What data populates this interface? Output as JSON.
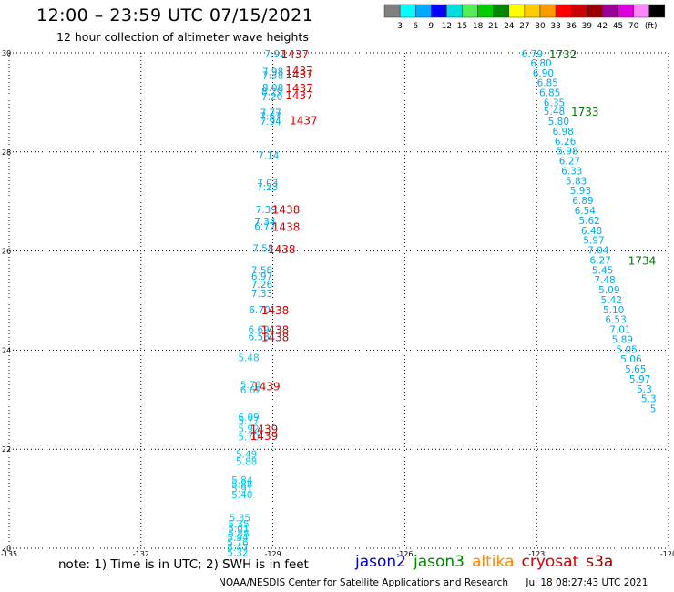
{
  "header": {
    "title": "12:00 – 23:59 UTC 07/15/2021",
    "subtitle": "12 hour collection of altimeter wave heights"
  },
  "legend": {
    "unit_label": "(ft)",
    "colors": [
      "#808080",
      "#00ffff",
      "#00aaff",
      "#0000ff",
      "#00dddd",
      "#55ee55",
      "#00cc00",
      "#008800",
      "#ffff00",
      "#ffcc00",
      "#ff9900",
      "#ff0000",
      "#cc0000",
      "#990000",
      "#990099",
      "#dd00dd",
      "#ff88ff",
      "#000000"
    ],
    "labels": [
      "3",
      "6",
      "9",
      "12",
      "15",
      "18",
      "21",
      "24",
      "27",
      "30",
      "33",
      "36",
      "39",
      "42",
      "45",
      "70"
    ]
  },
  "map": {
    "lon_range": [
      -135,
      -120
    ],
    "lat_range": [
      20,
      30
    ],
    "lon_ticks": [
      "-135",
      "-132",
      "-129",
      "-126",
      "-123",
      "-120"
    ],
    "lat_ticks": [
      "30",
      "28",
      "26",
      "24",
      "22",
      "20"
    ]
  },
  "tracks": [
    {
      "pass_color": "#00aaee",
      "points": [
        {
          "lat": 29.98,
          "lon": -128.95,
          "v": "7.92"
        },
        {
          "lat": 29.62,
          "lon": -129.0,
          "v": "7.98"
        },
        {
          "lat": 29.55,
          "lon": -129.0,
          "v": "7.38"
        },
        {
          "lat": 29.3,
          "lon": -129.0,
          "v": "8.08"
        },
        {
          "lat": 29.22,
          "lon": -129.02,
          "v": "8.29"
        },
        {
          "lat": 29.12,
          "lon": -129.02,
          "v": "7.20"
        },
        {
          "lat": 28.8,
          "lon": -129.05,
          "v": "7.77"
        },
        {
          "lat": 28.72,
          "lon": -129.05,
          "v": "7.67"
        },
        {
          "lat": 28.62,
          "lon": -129.05,
          "v": "7.94"
        },
        {
          "lat": 27.93,
          "lon": -129.1,
          "v": "7.14"
        },
        {
          "lat": 27.38,
          "lon": -129.12,
          "v": "7.03"
        },
        {
          "lat": 27.3,
          "lon": -129.12,
          "v": "7.23"
        },
        {
          "lat": 26.84,
          "lon": -129.15,
          "v": "7.39"
        },
        {
          "lat": 26.6,
          "lon": -129.18,
          "v": "7.34"
        },
        {
          "lat": 26.5,
          "lon": -129.18,
          "v": "6.72"
        },
        {
          "lat": 26.06,
          "lon": -129.22,
          "v": "7.58"
        },
        {
          "lat": 25.62,
          "lon": -129.25,
          "v": "7.58"
        },
        {
          "lat": 25.5,
          "lon": -129.25,
          "v": "6.97"
        },
        {
          "lat": 25.33,
          "lon": -129.25,
          "v": "7.26"
        },
        {
          "lat": 25.15,
          "lon": -129.25,
          "v": "7.33"
        },
        {
          "lat": 24.82,
          "lon": -129.3,
          "v": "6.70"
        },
        {
          "lat": 24.42,
          "lon": -129.32,
          "v": "6.69"
        },
        {
          "lat": 24.27,
          "lon": -129.32,
          "v": "6.58"
        }
      ]
    },
    {
      "pass_color": "#00ccee",
      "points": [
        {
          "lat": 23.85,
          "lon": -129.55,
          "v": "5.48"
        },
        {
          "lat": 23.3,
          "lon": -129.5,
          "v": "5.73"
        },
        {
          "lat": 23.2,
          "lon": -129.5,
          "v": "6.62"
        },
        {
          "lat": 22.65,
          "lon": -129.55,
          "v": "6.09"
        },
        {
          "lat": 22.58,
          "lon": -129.55,
          "v": "5.77"
        },
        {
          "lat": 22.42,
          "lon": -129.55,
          "v": "5.92"
        },
        {
          "lat": 22.25,
          "lon": -129.55,
          "v": "5.70"
        },
        {
          "lat": 21.9,
          "lon": -129.6,
          "v": "5.49"
        },
        {
          "lat": 21.76,
          "lon": -129.6,
          "v": "5.88"
        },
        {
          "lat": 21.38,
          "lon": -129.7,
          "v": "5.84"
        },
        {
          "lat": 21.3,
          "lon": -129.7,
          "v": "5.88"
        },
        {
          "lat": 21.2,
          "lon": -129.7,
          "v": "5.91"
        },
        {
          "lat": 21.08,
          "lon": -129.7,
          "v": "5.40"
        },
        {
          "lat": 20.62,
          "lon": -129.75,
          "v": "5.35"
        },
        {
          "lat": 20.5,
          "lon": -129.78,
          "v": "5.35"
        },
        {
          "lat": 20.4,
          "lon": -129.78,
          "v": "5.01"
        },
        {
          "lat": 20.3,
          "lon": -129.78,
          "v": "5.88"
        },
        {
          "lat": 20.22,
          "lon": -129.8,
          "v": "5.94"
        },
        {
          "lat": 20.12,
          "lon": -129.8,
          "v": "5.76"
        },
        {
          "lat": 20.02,
          "lon": -129.8,
          "v": "5.47"
        },
        {
          "lat": 19.92,
          "lon": -129.8,
          "v": "5.32"
        }
      ]
    },
    {
      "pass_color": "#00aaee",
      "points": [
        {
          "lat": 29.98,
          "lon": -123.1,
          "v": "6.79"
        },
        {
          "lat": 29.8,
          "lon": -122.9,
          "v": "6.80"
        },
        {
          "lat": 29.6,
          "lon": -122.85,
          "v": "6.90"
        },
        {
          "lat": 29.4,
          "lon": -122.75,
          "v": "6.85"
        },
        {
          "lat": 29.2,
          "lon": -122.7,
          "v": "6.85"
        },
        {
          "lat": 29.0,
          "lon": -122.6,
          "v": "6.35"
        },
        {
          "lat": 28.82,
          "lon": -122.6,
          "v": "5.48"
        },
        {
          "lat": 28.62,
          "lon": -122.5,
          "v": "5.80"
        },
        {
          "lat": 28.42,
          "lon": -122.4,
          "v": "6.98"
        },
        {
          "lat": 28.22,
          "lon": -122.35,
          "v": "6.26"
        },
        {
          "lat": 28.02,
          "lon": -122.3,
          "v": "5.98"
        },
        {
          "lat": 27.82,
          "lon": -122.25,
          "v": "6.27"
        },
        {
          "lat": 27.62,
          "lon": -122.2,
          "v": "6.33"
        },
        {
          "lat": 27.42,
          "lon": -122.1,
          "v": "5.83"
        },
        {
          "lat": 27.22,
          "lon": -122.0,
          "v": "5.93"
        },
        {
          "lat": 27.02,
          "lon": -121.95,
          "v": "6.89"
        },
        {
          "lat": 26.82,
          "lon": -121.9,
          "v": "6.54"
        },
        {
          "lat": 26.62,
          "lon": -121.8,
          "v": "5.62"
        },
        {
          "lat": 26.42,
          "lon": -121.75,
          "v": "6.48"
        },
        {
          "lat": 26.22,
          "lon": -121.7,
          "v": "5.97"
        },
        {
          "lat": 26.02,
          "lon": -121.6,
          "v": "7.04"
        },
        {
          "lat": 25.82,
          "lon": -121.55,
          "v": "6.27"
        },
        {
          "lat": 25.62,
          "lon": -121.5,
          "v": "5.45"
        },
        {
          "lat": 25.42,
          "lon": -121.45,
          "v": "7.48"
        },
        {
          "lat": 25.22,
          "lon": -121.35,
          "v": "5.09"
        },
        {
          "lat": 25.02,
          "lon": -121.3,
          "v": "5.42"
        },
        {
          "lat": 24.82,
          "lon": -121.25,
          "v": "5.10"
        },
        {
          "lat": 24.62,
          "lon": -121.2,
          "v": "6.53"
        },
        {
          "lat": 24.42,
          "lon": -121.1,
          "v": "7.01"
        },
        {
          "lat": 24.22,
          "lon": -121.05,
          "v": "5.89"
        },
        {
          "lat": 24.02,
          "lon": -120.95,
          "v": "5.05"
        },
        {
          "lat": 23.82,
          "lon": -120.85,
          "v": "5.06"
        },
        {
          "lat": 23.62,
          "lon": -120.75,
          "v": "5.65"
        },
        {
          "lat": 23.42,
          "lon": -120.65,
          "v": "5.97"
        },
        {
          "lat": 23.22,
          "lon": -120.55,
          "v": "5.3"
        },
        {
          "lat": 23.02,
          "lon": -120.45,
          "v": "5.3"
        },
        {
          "lat": 22.82,
          "lon": -120.35,
          "v": "5"
        }
      ]
    }
  ],
  "time_labels": [
    {
      "lat": 29.98,
      "lon": -128.5,
      "t": "1437",
      "color": "#dd0000"
    },
    {
      "lat": 29.65,
      "lon": -128.4,
      "t": "1437",
      "color": "#dd0000"
    },
    {
      "lat": 29.58,
      "lon": -128.4,
      "t": "1437",
      "color": "#dd0000"
    },
    {
      "lat": 29.3,
      "lon": -128.4,
      "t": "1437",
      "color": "#dd0000"
    },
    {
      "lat": 29.15,
      "lon": -128.4,
      "t": "1437",
      "color": "#dd0000"
    },
    {
      "lat": 28.65,
      "lon": -128.3,
      "t": "1437",
      "color": "#dd0000"
    },
    {
      "lat": 26.85,
      "lon": -128.7,
      "t": "1438",
      "color": "#dd0000"
    },
    {
      "lat": 26.5,
      "lon": -128.7,
      "t": "1438",
      "color": "#dd0000"
    },
    {
      "lat": 26.05,
      "lon": -128.8,
      "t": "1438",
      "color": "#dd0000"
    },
    {
      "lat": 24.82,
      "lon": -128.95,
      "t": "1438",
      "color": "#dd0000"
    },
    {
      "lat": 24.42,
      "lon": -128.95,
      "t": "1438",
      "color": "#dd0000"
    },
    {
      "lat": 24.27,
      "lon": -128.95,
      "t": "1438",
      "color": "#dd0000"
    },
    {
      "lat": 23.28,
      "lon": -129.15,
      "t": "1439",
      "color": "#dd0000"
    },
    {
      "lat": 22.42,
      "lon": -129.2,
      "t": "1439",
      "color": "#dd0000"
    },
    {
      "lat": 22.28,
      "lon": -129.2,
      "t": "1439",
      "color": "#dd0000"
    },
    {
      "lat": 29.98,
      "lon": -122.4,
      "t": "1732",
      "color": "#007700"
    },
    {
      "lat": 28.82,
      "lon": -121.9,
      "t": "1733",
      "color": "#007700"
    },
    {
      "lat": 25.82,
      "lon": -120.6,
      "t": "1734",
      "color": "#007700"
    }
  ],
  "footer": {
    "note": "note:  1) Time is in UTC;  2) SWH is in feet",
    "satellites": [
      {
        "name": "jason2",
        "color": "#0000cc"
      },
      {
        "name": "jason3",
        "color": "#008800"
      },
      {
        "name": "altika",
        "color": "#ff8800"
      },
      {
        "name": "cryosat",
        "color": "#cc0000"
      },
      {
        "name": "s3a",
        "color": "#990000"
      }
    ],
    "credit": "NOAA/NESDIS Center for Satellite Applications and Research",
    "timestamp": "Jul 18 08:27:43 UTC 2021"
  }
}
